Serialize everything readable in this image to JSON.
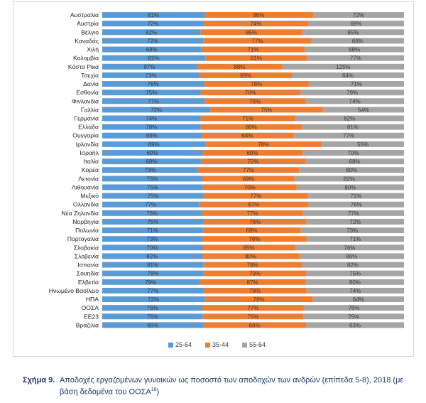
{
  "chart_data": {
    "type": "bar",
    "orientation": "horizontal",
    "stacked": true,
    "categories": [
      "Αυστραλία",
      "Αυστρία",
      "Βέλγιο",
      "Καναδάς",
      "Χιλή",
      "Κολομβία",
      "Κόστα Ρίκα",
      "Τσεχία",
      "Δανία",
      "Εσθονία",
      "Φινλανδία",
      "Γαλλία",
      "Γερμανία",
      "Ελλάδα",
      "Ουγγαρία",
      "Ιρλανδία",
      "Ισραήλ",
      "Ιταλία",
      "Κορέα",
      "Λετονία",
      "Λιθουανία",
      "Μεξικό",
      "Ολλανδία",
      "Νέα Ζηλανδία",
      "Νορβηγία",
      "Πολωνία",
      "Πορτογαλία",
      "Σλοβακία",
      "Σλοβενία",
      "Ισπανία",
      "Σουηδία",
      "Ελβετία",
      "Ηνωμένο Βασίλειο",
      "ΗΠΑ",
      "ΟΟΣΑ",
      "ΕΕ23",
      "Βραζιλία"
    ],
    "series": [
      {
        "name": "25-64",
        "color": "#5b9bd5",
        "values": [
          81,
          72,
          82,
          72,
          68,
          82,
          97,
          73,
          76,
          75,
          77,
          72,
          74,
          78,
          69,
          69,
          69,
          68,
          73,
          75,
          75,
          75,
          77,
          76,
          75,
          71,
          73,
          70,
          82,
          81,
          78,
          79,
          77,
          72,
          76,
          75,
          65
        ]
      },
      {
        "name": "35-44",
        "color": "#ed7d31",
        "values": [
          86,
          74,
          85,
          77,
          71,
          81,
          88,
          69,
          78,
          76,
          76,
          75,
          71,
          80,
          64,
          78,
          69,
          72,
          77,
          69,
          70,
          77,
          87,
          77,
          76,
          69,
          76,
          65,
          80,
          79,
          79,
          87,
          78,
          76,
          77,
          75,
          66
        ]
      },
      {
        "name": "55-64",
        "color": "#a5a5a5",
        "values": [
          72,
          68,
          85,
          66,
          68,
          77,
          125,
          84,
          71,
          79,
          74,
          54,
          82,
          81,
          77,
          55,
          70,
          68,
          80,
          82,
          80,
          71,
          76,
          77,
          72,
          73,
          71,
          76,
          86,
          82,
          75,
          80,
          74,
          64,
          76,
          75,
          63
        ]
      }
    ],
    "labels": {
      "25-64": [
        "81%",
        "72%",
        "82%",
        "72%",
        "68%",
        "82%",
        "97%",
        "73%",
        "76%",
        "75%",
        "77%",
        "72%",
        "74%",
        "78%",
        "69%",
        "69%",
        "69%",
        "68%",
        "73%",
        "75%",
        "75%",
        "75%",
        "77%",
        "76%",
        "75%",
        "71%",
        "73%",
        "70%",
        "82%",
        "81%",
        "78%",
        "79%",
        "77%",
        "72%",
        "76%",
        "75%",
        "65%"
      ],
      "35-44": [
        "86%",
        "74%",
        "85%",
        "77%",
        "71%",
        "81%",
        "88%",
        "69%",
        "78%",
        "76%",
        "76%",
        "75%",
        "71%",
        "80%",
        "64%",
        "78%",
        "69%",
        "72%",
        "77%",
        "69%",
        "70%",
        "77%",
        "87%",
        "77%",
        "76%",
        "69%",
        "76%",
        "65%",
        "80%",
        "79%",
        "79%",
        "87%",
        "78%",
        "76%",
        "77%",
        "75%",
        "66%"
      ],
      "55-64": [
        "72%",
        "68%",
        "85%",
        "66%",
        "68%",
        "77%",
        "125%",
        "84%",
        "71%",
        "79%",
        "74%",
        "54%",
        "82%",
        "81%",
        "77%",
        "55%",
        "70%",
        "68%",
        "80%",
        "82%",
        "80%",
        "71%",
        "76%",
        "77%",
        "72%",
        "73%",
        "71%",
        "76%",
        "86%",
        "82%",
        "75%",
        "80%",
        "74%",
        "64%",
        "76%",
        "75%",
        "63%"
      ]
    },
    "legend": "bottom",
    "grid": false
  },
  "caption": {
    "figure_label": "Σχήμα 9.",
    "text_line1": "Αποδοχές εργαζομένων γυναικών ως ποσοστό των αποδοχών των ανδρών (επίπεδα 5-8), 2018 (με",
    "text_line2": "βάση δεδομένα του ΟΟΣΑ",
    "footnote_ref": "16",
    "text_end": ")"
  }
}
